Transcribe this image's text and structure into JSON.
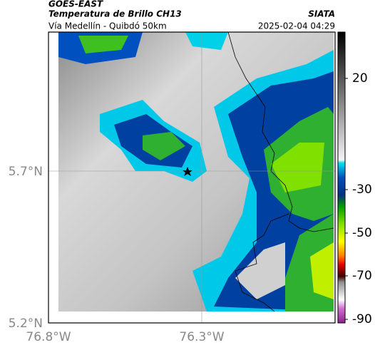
{
  "header": {
    "satellite": "GOES-EAST",
    "product": "Temperatura de Brillo CH13",
    "source": "SIATA",
    "location": "Vía Medellín - Quibdó 50km",
    "datetime": "2025-02-04 04:29"
  },
  "map": {
    "x_ticks": [
      "76.8°W",
      "76.3°W"
    ],
    "y_ticks": [
      "5.7°N",
      "5.2°N"
    ]
  },
  "colorbar": {
    "ticks": [
      "20",
      "-30",
      "-50",
      "-70",
      "-90"
    ]
  }
}
